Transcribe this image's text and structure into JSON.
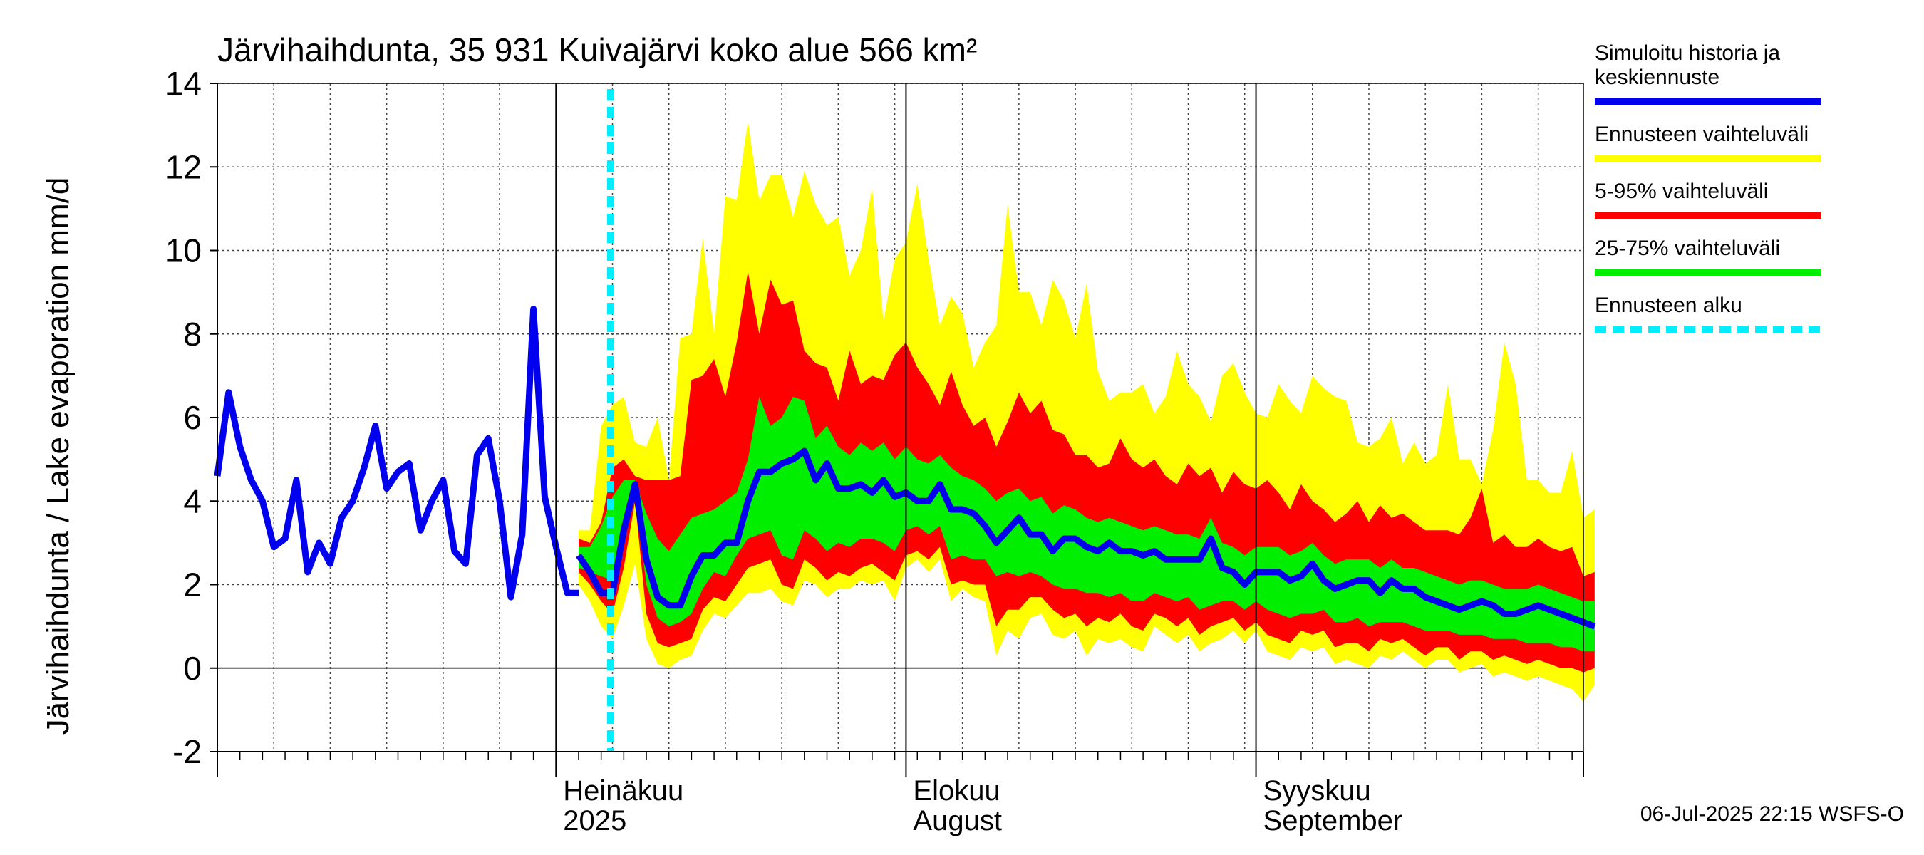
{
  "chart_data": {
    "type": "area",
    "title": "Järvihaihdunta, 35 931 Kuivajärvi koko alue 566 km²",
    "ylabel": "Järvihaihdunta / Lake evaporation   mm/d",
    "ylim": [
      -2,
      14
    ],
    "yticks": [
      -2,
      0,
      2,
      4,
      6,
      8,
      10,
      12,
      14
    ],
    "grid": true,
    "legend_position": "right",
    "x_range": [
      "2025-06-01",
      "2025-09-30"
    ],
    "month_labels": [
      {
        "date": "2025-07-01",
        "line1": "Heinäkuu",
        "line2": "2025"
      },
      {
        "date": "2025-08-01",
        "line1": "Elokuu",
        "line2": "August"
      },
      {
        "date": "2025-09-01",
        "line1": "Syyskuu",
        "line2": "September"
      }
    ],
    "forecast_start": "2025-07-06",
    "colors": {
      "history": "#0000ee",
      "range_full": "#ffff00",
      "range_5_95": "#ff0000",
      "range_25_75": "#00ee00",
      "forecast_start": "#00eeff"
    },
    "history": {
      "start": "2025-06-01",
      "values": [
        4.6,
        6.6,
        5.3,
        4.5,
        4.0,
        2.9,
        3.1,
        4.5,
        2.3,
        3.0,
        2.5,
        3.6,
        4.0,
        4.8,
        5.8,
        4.3,
        4.7,
        4.9,
        3.3,
        4.0,
        4.5,
        2.8,
        2.5,
        5.1,
        5.5,
        4.0,
        1.7,
        3.2,
        8.6,
        4.1,
        2.9,
        1.8,
        1.8
      ]
    },
    "forecast": {
      "start": "2025-07-03",
      "min": [
        2.0,
        1.6,
        1.0,
        0.7,
        1.5,
        2.5,
        0.7,
        0.1,
        0.0,
        0.2,
        0.3,
        0.9,
        1.3,
        1.2,
        1.5,
        1.8,
        1.8,
        1.9,
        1.6,
        1.5,
        2.1,
        2.0,
        1.7,
        1.9,
        1.9,
        2.1,
        2.0,
        2.1,
        1.6,
        2.4,
        2.6,
        2.3,
        2.6,
        1.6,
        1.9,
        1.7,
        1.6,
        0.3,
        0.9,
        0.7,
        1.2,
        1.3,
        0.8,
        0.7,
        0.9,
        0.3,
        0.7,
        0.6,
        0.7,
        0.5,
        0.4,
        1.0,
        0.8,
        0.6,
        0.8,
        0.4,
        0.6,
        0.7,
        0.9,
        0.6,
        0.9,
        0.4,
        0.3,
        0.2,
        0.5,
        0.4,
        0.5,
        0.1,
        0.2,
        0.1,
        0.0,
        0.3,
        0.2,
        0.4,
        0.2,
        0.0,
        0.2,
        0.2,
        -0.1,
        0.0,
        0.1,
        -0.2,
        -0.1,
        -0.2,
        -0.3,
        -0.2,
        -0.3,
        -0.4,
        -0.5,
        -0.8,
        -0.4
      ],
      "p5": [
        2.3,
        2.0,
        1.6,
        1.3,
        2.4,
        4.0,
        1.3,
        0.6,
        0.5,
        0.6,
        0.7,
        1.4,
        1.7,
        1.6,
        2.0,
        2.4,
        2.5,
        2.6,
        2.0,
        1.9,
        2.6,
        2.4,
        2.1,
        2.3,
        2.2,
        2.4,
        2.5,
        2.3,
        2.1,
        2.7,
        2.8,
        2.6,
        2.9,
        2.0,
        2.1,
        2.0,
        2.0,
        1.0,
        1.4,
        1.4,
        1.7,
        1.7,
        1.4,
        1.2,
        1.3,
        1.0,
        1.2,
        1.1,
        1.3,
        1.0,
        0.9,
        1.3,
        1.2,
        1.0,
        1.2,
        0.8,
        1.0,
        1.1,
        1.2,
        0.9,
        1.1,
        0.8,
        0.7,
        0.6,
        0.9,
        0.8,
        0.9,
        0.5,
        0.6,
        0.6,
        0.4,
        0.7,
        0.6,
        0.7,
        0.5,
        0.3,
        0.5,
        0.5,
        0.2,
        0.4,
        0.4,
        0.2,
        0.3,
        0.2,
        0.1,
        0.2,
        0.1,
        0.0,
        0.0,
        -0.1,
        0.0
      ],
      "p25": [
        2.4,
        2.3,
        2.2,
        2.1,
        3.1,
        4.2,
        2.0,
        1.2,
        1.0,
        1.1,
        1.3,
        1.9,
        2.3,
        2.2,
        2.7,
        3.1,
        3.2,
        3.3,
        2.7,
        2.6,
        3.3,
        3.1,
        2.8,
        3.0,
        2.9,
        3.1,
        3.1,
        3.0,
        2.8,
        3.3,
        3.4,
        3.2,
        3.4,
        2.6,
        2.7,
        2.6,
        2.6,
        2.2,
        2.3,
        2.2,
        2.3,
        2.2,
        2.0,
        1.9,
        1.9,
        1.8,
        1.8,
        1.7,
        1.8,
        1.6,
        1.6,
        1.8,
        1.7,
        1.6,
        1.7,
        1.4,
        1.5,
        1.6,
        1.6,
        1.4,
        1.6,
        1.4,
        1.3,
        1.2,
        1.3,
        1.3,
        1.4,
        1.1,
        1.1,
        1.2,
        1.0,
        1.1,
        1.1,
        1.1,
        1.0,
        0.9,
        0.9,
        0.9,
        0.8,
        0.8,
        0.8,
        0.7,
        0.7,
        0.7,
        0.6,
        0.6,
        0.6,
        0.5,
        0.5,
        0.4,
        0.4
      ],
      "median": [
        2.7,
        2.3,
        1.8,
        1.8,
        3.3,
        4.4,
        2.6,
        1.7,
        1.5,
        1.5,
        2.2,
        2.7,
        2.7,
        3.0,
        3.0,
        4.0,
        4.7,
        4.7,
        4.9,
        5.0,
        5.2,
        4.5,
        4.9,
        4.3,
        4.3,
        4.4,
        4.2,
        4.5,
        4.1,
        4.2,
        4.0,
        4.0,
        4.4,
        3.8,
        3.8,
        3.7,
        3.4,
        3.0,
        3.3,
        3.6,
        3.2,
        3.2,
        2.8,
        3.1,
        3.1,
        2.9,
        2.8,
        3.0,
        2.8,
        2.8,
        2.7,
        2.8,
        2.6,
        2.6,
        2.6,
        2.6,
        3.1,
        2.4,
        2.3,
        2.0,
        2.3,
        2.3,
        2.3,
        2.1,
        2.2,
        2.5,
        2.1,
        1.9,
        2.0,
        2.1,
        2.1,
        1.8,
        2.1,
        1.9,
        1.9,
        1.7,
        1.6,
        1.5,
        1.4,
        1.5,
        1.6,
        1.5,
        1.3,
        1.3,
        1.4,
        1.5,
        1.4,
        1.3,
        1.2,
        1.1,
        1.0
      ],
      "p75": [
        2.9,
        2.9,
        3.4,
        4.1,
        4.5,
        4.5,
        3.7,
        3.1,
        2.8,
        3.2,
        3.6,
        3.7,
        3.8,
        4.0,
        4.2,
        5.0,
        6.5,
        5.8,
        6.0,
        6.5,
        6.4,
        5.5,
        5.8,
        5.3,
        5.1,
        5.4,
        5.2,
        5.4,
        5.0,
        5.3,
        5.0,
        4.9,
        5.1,
        4.8,
        4.6,
        4.5,
        4.3,
        4.0,
        4.2,
        4.3,
        4.0,
        4.1,
        3.7,
        3.9,
        3.8,
        3.6,
        3.5,
        3.6,
        3.5,
        3.4,
        3.3,
        3.4,
        3.3,
        3.2,
        3.2,
        3.1,
        3.6,
        3.0,
        2.9,
        2.7,
        2.9,
        2.9,
        2.9,
        2.7,
        2.8,
        3.0,
        2.7,
        2.5,
        2.6,
        2.6,
        2.6,
        2.4,
        2.6,
        2.4,
        2.4,
        2.3,
        2.2,
        2.1,
        2.0,
        2.1,
        2.1,
        2.0,
        1.9,
        1.9,
        1.9,
        2.0,
        1.9,
        1.8,
        1.7,
        1.6,
        1.6
      ],
      "p95": [
        3.1,
        3.0,
        3.5,
        4.8,
        5.0,
        4.6,
        4.5,
        4.5,
        4.5,
        4.6,
        6.9,
        7.0,
        7.4,
        6.5,
        7.8,
        9.5,
        8.0,
        9.3,
        8.7,
        8.8,
        7.6,
        7.3,
        7.2,
        6.4,
        7.6,
        6.8,
        7.0,
        6.9,
        7.5,
        7.8,
        7.2,
        6.8,
        6.3,
        7.1,
        6.3,
        5.8,
        6.0,
        5.3,
        5.9,
        6.6,
        6.1,
        6.4,
        5.7,
        5.6,
        5.1,
        5.1,
        4.8,
        4.9,
        5.5,
        5.0,
        4.8,
        5.0,
        4.6,
        4.4,
        4.9,
        4.6,
        4.8,
        4.2,
        4.7,
        4.4,
        4.3,
        4.5,
        4.2,
        3.8,
        4.4,
        4.0,
        3.8,
        3.5,
        3.7,
        4.0,
        3.5,
        3.9,
        3.6,
        3.7,
        3.5,
        3.3,
        3.3,
        3.3,
        3.2,
        3.6,
        4.3,
        3.0,
        3.2,
        2.9,
        2.9,
        3.1,
        2.9,
        2.8,
        2.9,
        2.2,
        2.3
      ],
      "max": [
        3.3,
        3.3,
        5.8,
        6.3,
        6.5,
        5.4,
        5.3,
        6.0,
        4.5,
        7.9,
        8.0,
        10.3,
        8.0,
        11.3,
        11.2,
        13.1,
        11.2,
        11.8,
        11.8,
        10.8,
        11.9,
        11.1,
        10.6,
        10.8,
        9.4,
        10.0,
        11.5,
        8.3,
        9.8,
        10.2,
        11.6,
        9.8,
        8.2,
        8.9,
        8.5,
        7.2,
        7.8,
        8.2,
        11.1,
        9.0,
        9.0,
        8.2,
        9.3,
        8.8,
        7.9,
        9.2,
        7.1,
        6.4,
        6.6,
        6.6,
        6.8,
        6.1,
        6.5,
        7.6,
        6.8,
        6.5,
        5.9,
        7.0,
        7.3,
        6.6,
        6.1,
        6.0,
        6.8,
        6.4,
        6.1,
        7.0,
        6.7,
        6.5,
        6.4,
        5.4,
        5.3,
        5.5,
        6.0,
        4.9,
        5.4,
        4.9,
        5.1,
        6.8,
        5.0,
        5.0,
        4.4,
        5.7,
        7.8,
        6.8,
        4.5,
        4.5,
        4.2,
        4.2,
        5.2,
        3.6,
        3.8
      ]
    },
    "legend": [
      {
        "label": "Simuloitu historia ja keskiennuste",
        "color": "#0000ee",
        "style": "solid"
      },
      {
        "label": "Ennusteen vaihteluväli",
        "color": "#ffff00",
        "style": "solid"
      },
      {
        "label": "5-95% vaihteluväli",
        "color": "#ff0000",
        "style": "solid"
      },
      {
        "label": "25-75% vaihteluväli",
        "color": "#00ee00",
        "style": "solid"
      },
      {
        "label": "Ennusteen alku",
        "color": "#00eeff",
        "style": "dashed"
      }
    ],
    "footer": "06-Jul-2025 22:15 WSFS-O"
  }
}
